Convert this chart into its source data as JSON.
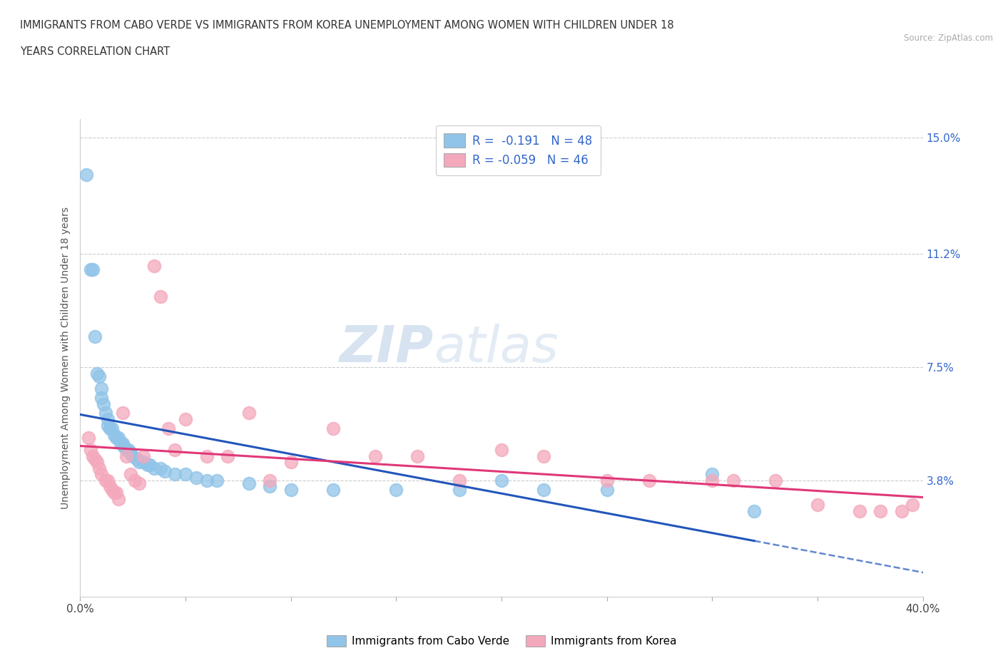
{
  "title_line1": "IMMIGRANTS FROM CABO VERDE VS IMMIGRANTS FROM KOREA UNEMPLOYMENT AMONG WOMEN WITH CHILDREN UNDER 18",
  "title_line2": "YEARS CORRELATION CHART",
  "source": "Source: ZipAtlas.com",
  "ylabel": "Unemployment Among Women with Children Under 18 years",
  "xmin": 0.0,
  "xmax": 0.4,
  "ymin": 0.0,
  "ymax": 0.156,
  "yticks": [
    0.038,
    0.075,
    0.112,
    0.15
  ],
  "ytick_labels_left": [
    "",
    "",
    "",
    ""
  ],
  "ytick_labels_right": [
    "3.8%",
    "7.5%",
    "11.2%",
    "15.0%"
  ],
  "xtick_left_label": "0.0%",
  "xtick_right_label": "40.0%",
  "cabo_verde_color": "#90C4E8",
  "korea_color": "#F4A8BC",
  "cabo_verde_line_color": "#2255BB",
  "korea_line_color": "#E03878",
  "cabo_verde_R": -0.191,
  "cabo_verde_N": 48,
  "korea_R": -0.059,
  "korea_N": 46,
  "legend_label_1": "Immigrants from Cabo Verde",
  "legend_label_2": "Immigrants from Korea",
  "watermark_1": "ZIP",
  "watermark_2": "atlas",
  "cabo_verde_x": [
    0.003,
    0.005,
    0.006,
    0.007,
    0.008,
    0.009,
    0.01,
    0.01,
    0.011,
    0.012,
    0.013,
    0.013,
    0.014,
    0.015,
    0.016,
    0.017,
    0.018,
    0.019,
    0.02,
    0.021,
    0.022,
    0.023,
    0.024,
    0.025,
    0.027,
    0.028,
    0.03,
    0.032,
    0.033,
    0.035,
    0.038,
    0.04,
    0.045,
    0.05,
    0.055,
    0.06,
    0.065,
    0.08,
    0.09,
    0.1,
    0.12,
    0.15,
    0.18,
    0.2,
    0.22,
    0.25,
    0.3,
    0.32
  ],
  "cabo_verde_y": [
    0.138,
    0.107,
    0.107,
    0.085,
    0.073,
    0.072,
    0.068,
    0.065,
    0.063,
    0.06,
    0.058,
    0.056,
    0.055,
    0.055,
    0.053,
    0.052,
    0.052,
    0.05,
    0.05,
    0.049,
    0.048,
    0.048,
    0.047,
    0.046,
    0.045,
    0.044,
    0.044,
    0.043,
    0.043,
    0.042,
    0.042,
    0.041,
    0.04,
    0.04,
    0.039,
    0.038,
    0.038,
    0.037,
    0.036,
    0.035,
    0.035,
    0.035,
    0.035,
    0.038,
    0.035,
    0.035,
    0.04,
    0.028
  ],
  "korea_x": [
    0.004,
    0.005,
    0.006,
    0.007,
    0.008,
    0.009,
    0.01,
    0.012,
    0.013,
    0.014,
    0.015,
    0.016,
    0.017,
    0.018,
    0.02,
    0.022,
    0.024,
    0.026,
    0.028,
    0.03,
    0.035,
    0.038,
    0.042,
    0.045,
    0.05,
    0.06,
    0.07,
    0.08,
    0.09,
    0.1,
    0.12,
    0.14,
    0.16,
    0.18,
    0.2,
    0.22,
    0.25,
    0.27,
    0.3,
    0.31,
    0.33,
    0.35,
    0.37,
    0.38,
    0.39,
    0.395
  ],
  "korea_y": [
    0.052,
    0.048,
    0.046,
    0.045,
    0.044,
    0.042,
    0.04,
    0.038,
    0.038,
    0.036,
    0.035,
    0.034,
    0.034,
    0.032,
    0.06,
    0.046,
    0.04,
    0.038,
    0.037,
    0.046,
    0.108,
    0.098,
    0.055,
    0.048,
    0.058,
    0.046,
    0.046,
    0.06,
    0.038,
    0.044,
    0.055,
    0.046,
    0.046,
    0.038,
    0.048,
    0.046,
    0.038,
    0.038,
    0.038,
    0.038,
    0.038,
    0.03,
    0.028,
    0.028,
    0.028,
    0.03
  ]
}
